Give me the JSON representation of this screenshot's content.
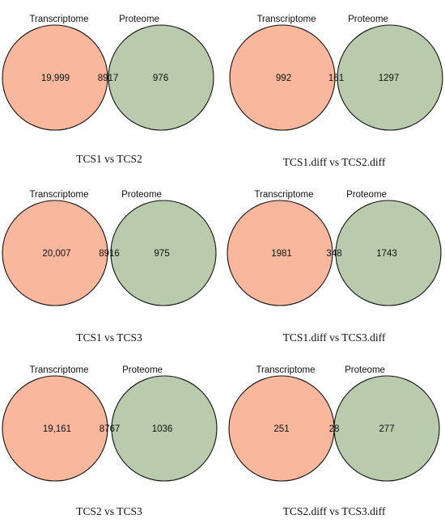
{
  "colors": {
    "transcriptome": "#F9B79D",
    "proteome": "#B9CBAC",
    "overlap": "#B9976E",
    "stroke": "#111111"
  },
  "panels": [
    {
      "left_label": "Transcriptome",
      "right_label": "Proteome",
      "left_only": "19,999",
      "both": "8917",
      "right_only": "976",
      "caption": "TCS1 vs TCS2"
    },
    {
      "left_label": "Transcriptome",
      "right_label": "Proteome",
      "left_only": "992",
      "both": "161",
      "right_only": "1297",
      "caption": "TCS1.diff vs TCS2.diff"
    },
    {
      "left_label": "Transcriptome",
      "right_label": "Proteome",
      "left_only": "20,007",
      "both": "8916",
      "right_only": "975",
      "caption": "TCS1 vs TCS3"
    },
    {
      "left_label": "Transcriptome",
      "right_label": "Proteome",
      "left_only": "1981",
      "both": "348",
      "right_only": "1743",
      "caption": "TCS1.diff vs TCS3.diff"
    },
    {
      "left_label": "Transcriptome",
      "right_label": "Proteome",
      "left_only": "19,161",
      "both": "8767",
      "right_only": "1036",
      "caption": "TCS2 vs TCS3"
    },
    {
      "left_label": "Transcriptome",
      "right_label": "Proteome",
      "left_only": "251",
      "both": "28",
      "right_only": "277",
      "caption": "TCS2.diff vs TCS3.diff"
    }
  ]
}
